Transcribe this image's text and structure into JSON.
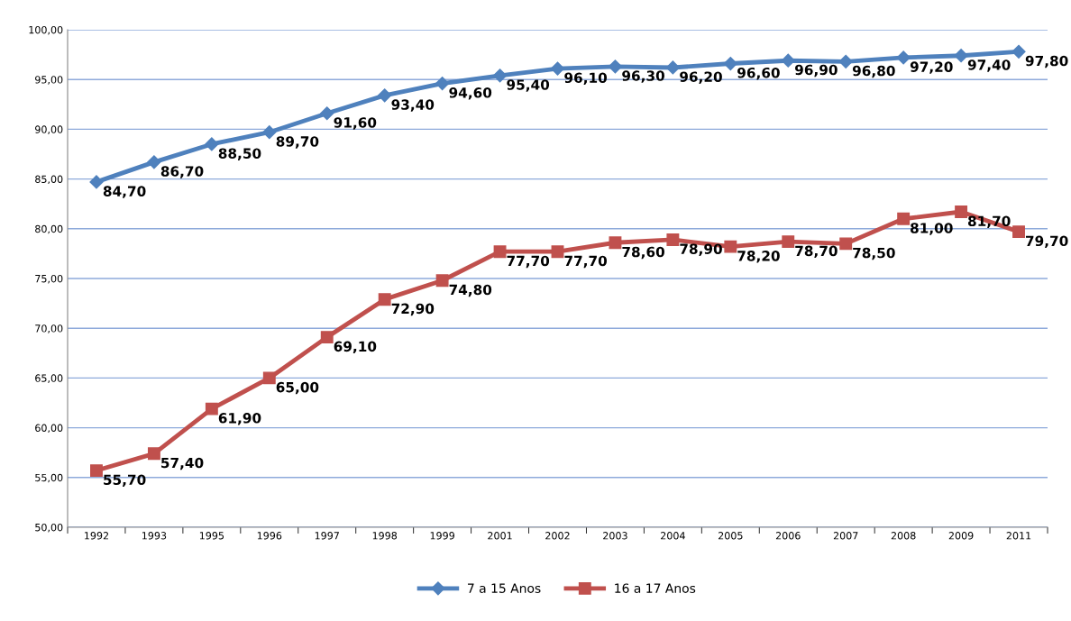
{
  "chart_data": {
    "type": "line",
    "categories": [
      "1992",
      "1993",
      "1995",
      "1996",
      "1997",
      "1998",
      "1999",
      "2001",
      "2002",
      "2003",
      "2004",
      "2005",
      "2006",
      "2007",
      "2008",
      "2009",
      "2011"
    ],
    "series": [
      {
        "name": "7 a 15 Anos",
        "color": "#4f81bd",
        "marker": "diamond",
        "values": [
          84.7,
          86.7,
          88.5,
          89.7,
          91.6,
          93.4,
          94.6,
          95.4,
          96.1,
          96.3,
          96.2,
          96.6,
          96.9,
          96.8,
          97.2,
          97.4,
          97.8
        ],
        "value_labels": [
          "84,70",
          "86,70",
          "88,50",
          "89,70",
          "91,60",
          "93,40",
          "94,60",
          "95,40",
          "96,10",
          "96,30",
          "96,20",
          "96,60",
          "96,90",
          "96,80",
          "97,20",
          "97,40",
          "97,80"
        ]
      },
      {
        "name": "16 a 17 Anos",
        "color": "#c0504d",
        "marker": "square",
        "values": [
          55.7,
          57.4,
          61.9,
          65.0,
          69.1,
          72.9,
          74.8,
          77.7,
          77.7,
          78.6,
          78.9,
          78.2,
          78.7,
          78.5,
          81.0,
          81.7,
          79.7
        ],
        "value_labels": [
          "55,70",
          "57,40",
          "61,90",
          "65,00",
          "69,10",
          "72,90",
          "74,80",
          "77,70",
          "77,70",
          "78,60",
          "78,90",
          "78,20",
          "78,70",
          "78,50",
          "81,00",
          "81,70",
          "79,70"
        ]
      }
    ],
    "ylim": [
      50,
      100
    ],
    "yticks": [
      {
        "value": 50,
        "label": "50,00"
      },
      {
        "value": 55,
        "label": "55,00"
      },
      {
        "value": 60,
        "label": "60,00"
      },
      {
        "value": 65,
        "label": "65,00"
      },
      {
        "value": 70,
        "label": "70,00"
      },
      {
        "value": 75,
        "label": "75,00"
      },
      {
        "value": 80,
        "label": "80,00"
      },
      {
        "value": 85,
        "label": "85,00"
      },
      {
        "value": 90,
        "label": "90,00"
      },
      {
        "value": 95,
        "label": "95,00"
      },
      {
        "value": 100,
        "label": "100,00"
      }
    ],
    "grid": "y",
    "legend": "bottom",
    "line_style": "solid"
  }
}
